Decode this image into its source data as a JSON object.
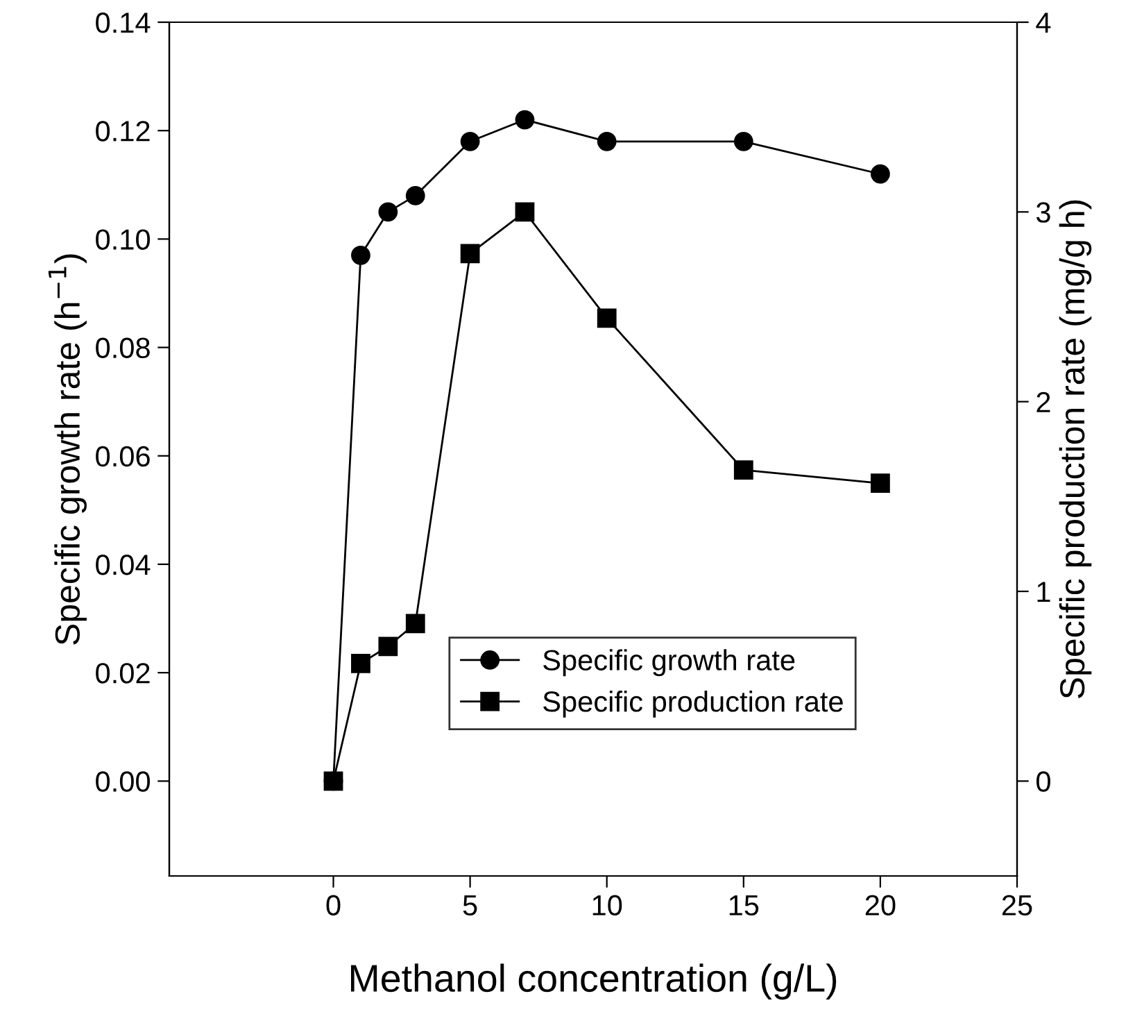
{
  "chart_data": {
    "type": "line",
    "xlabel": "Methanol concentration (g/L)",
    "ylabel": "Specific growth rate (h$^{−1}$)",
    "y2label": "Specific production rate (mg/g h)",
    "x": [
      0,
      1,
      2,
      3,
      5,
      7,
      10,
      15,
      20
    ],
    "series": [
      {
        "name": "Specific growth rate",
        "color": "#000000",
        "marker": "circle",
        "values": [
          0.0,
          0.097,
          0.105,
          0.108,
          0.118,
          0.122,
          0.118,
          0.118,
          0.112
        ]
      },
      {
        "name": "Specific production rate",
        "color": "#000000",
        "marker": "square",
        "axis": "y2",
        "values": [
          0.0,
          0.62,
          0.71,
          0.83,
          2.78,
          3.0,
          2.44,
          1.64,
          1.57
        ]
      }
    ],
    "xlim": [
      -6,
      25
    ],
    "xticks": [
      0,
      5,
      10,
      15,
      20,
      25
    ],
    "ylim": [
      -0.0175,
      0.14
    ],
    "yticks": [
      {
        "value": 0,
        "label": "0.00"
      },
      {
        "value": 0.02,
        "label": "0.02"
      },
      {
        "value": 0.04,
        "label": "0.04"
      },
      {
        "value": 0.06,
        "label": "0.06"
      },
      {
        "value": 0.08,
        "label": "0.08"
      },
      {
        "value": 0.1,
        "label": "0.10"
      },
      {
        "value": 0.12,
        "label": "0.12"
      },
      {
        "value": 0.14,
        "label": "0.14"
      }
    ],
    "y2lim": [
      -0.5,
      4
    ],
    "y2ticks": [
      0,
      1,
      2,
      3,
      4
    ],
    "legend": "bottom",
    "grid": false
  }
}
